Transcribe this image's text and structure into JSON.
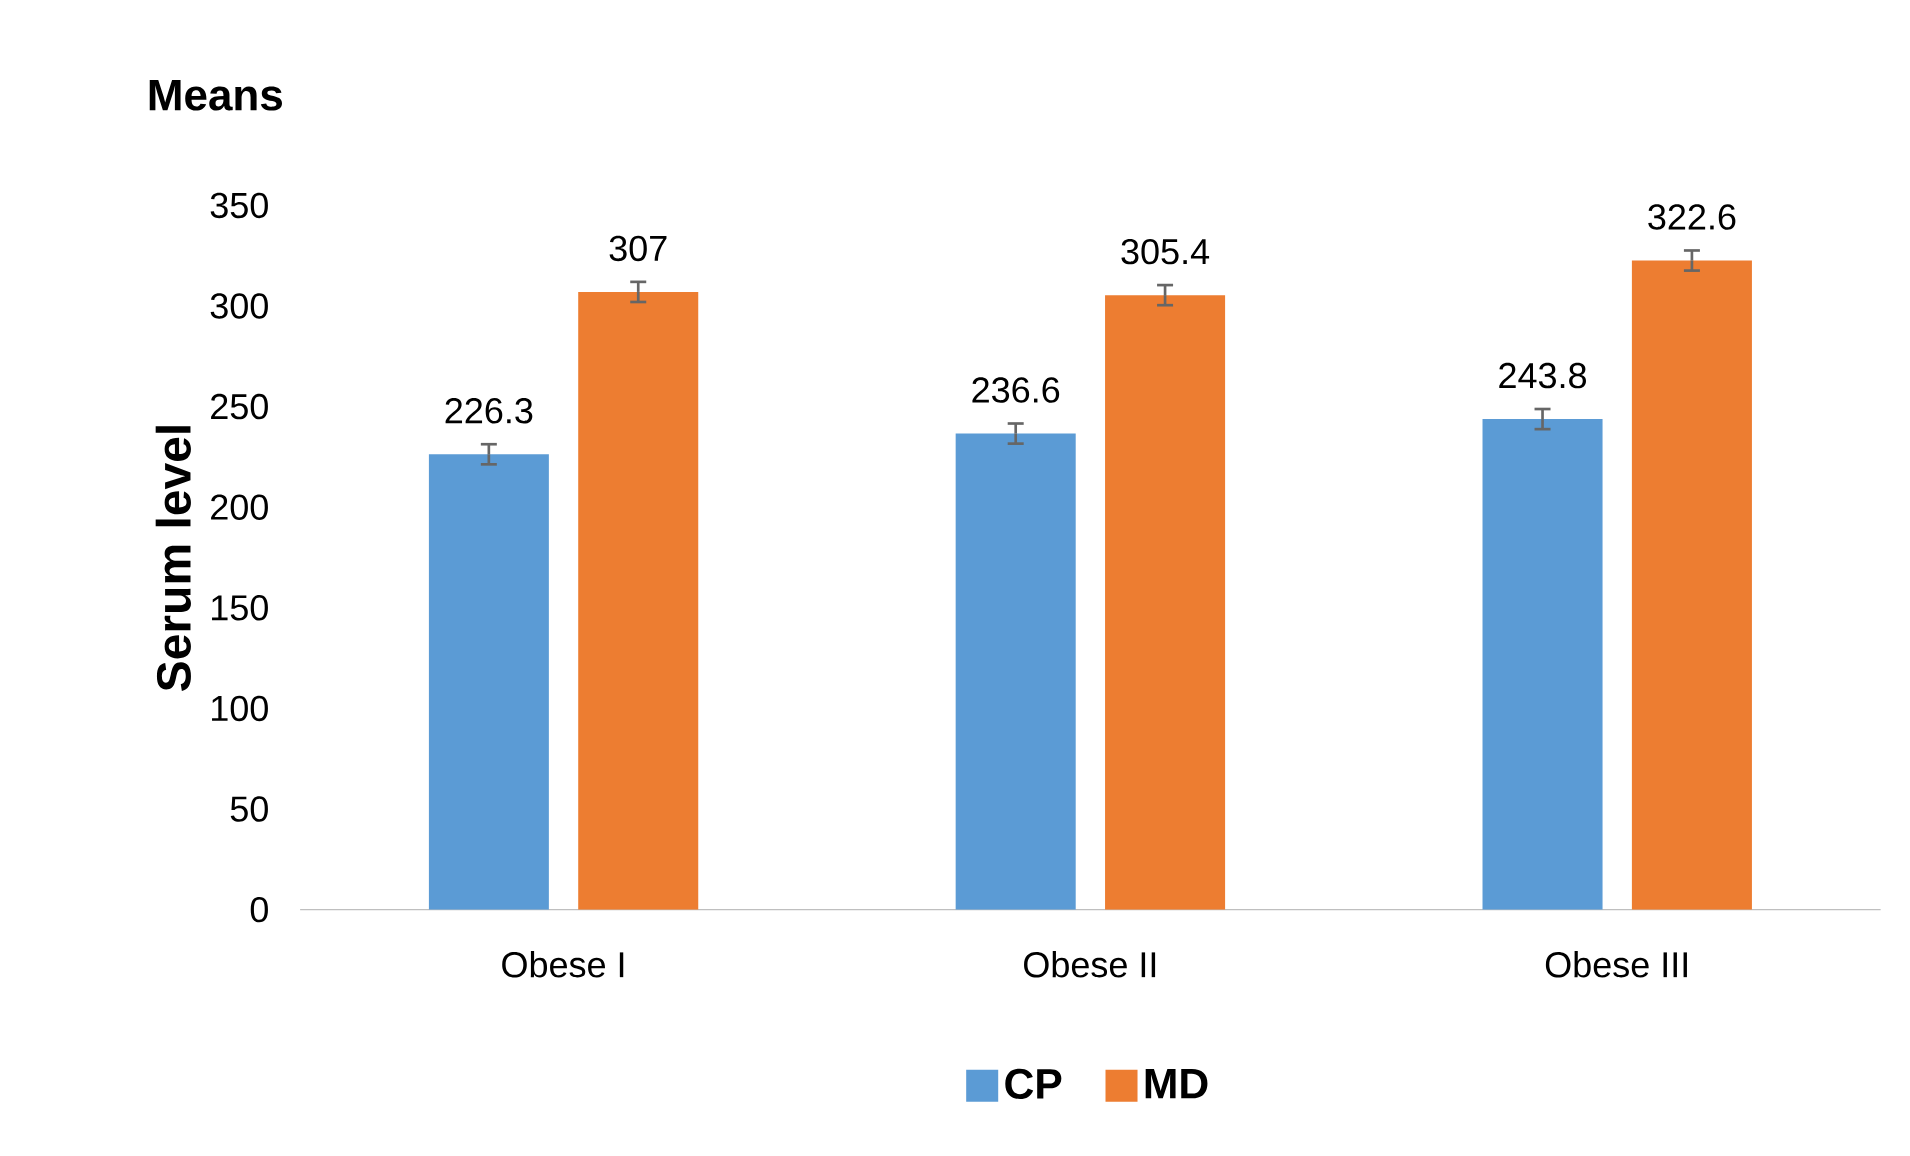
{
  "chart_data": {
    "type": "bar",
    "title": "Means",
    "ylabel": "Serum level",
    "categories": [
      "Obese I",
      "Obese II",
      "Obese III"
    ],
    "series": [
      {
        "name": "CP",
        "color": "#5b9bd5",
        "values": [
          226.3,
          236.6,
          243.8
        ],
        "errors": [
          5,
          5,
          5
        ]
      },
      {
        "name": "MD",
        "color": "#ed7d31",
        "values": [
          307,
          305.4,
          322.6
        ],
        "errors": [
          5,
          5,
          5
        ]
      }
    ],
    "ylim": [
      0,
      350
    ],
    "yticks": [
      0,
      50,
      100,
      150,
      200,
      250,
      300,
      350
    ],
    "data_labels": true,
    "legend": "bottom",
    "grid": false
  }
}
